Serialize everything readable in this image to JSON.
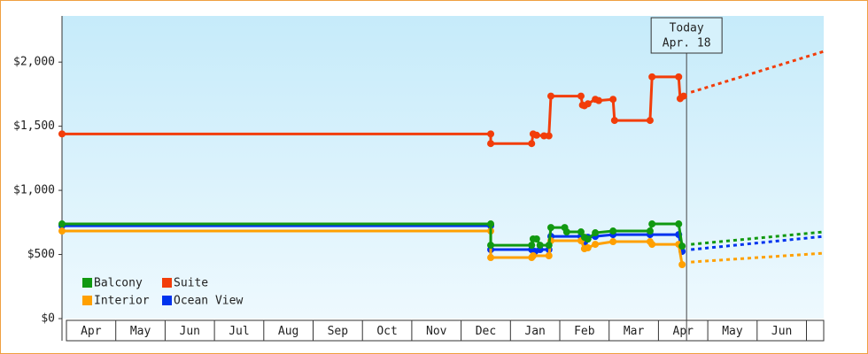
{
  "chart_data": {
    "type": "line",
    "step": true,
    "xlim": [
      -0.09,
      15.35
    ],
    "ylim": [
      0,
      2360
    ],
    "yticks": [
      {
        "value": 0,
        "label": "$0"
      },
      {
        "value": 500,
        "label": "$500"
      },
      {
        "value": 1000,
        "label": "$1,000"
      },
      {
        "value": 1500,
        "label": "$1,500"
      },
      {
        "value": 2000,
        "label": "$2,000"
      }
    ],
    "categories": [
      "Apr",
      "May",
      "Jun",
      "Jul",
      "Aug",
      "Sep",
      "Oct",
      "Nov",
      "Dec",
      "Jan",
      "Feb",
      "Mar",
      "Apr",
      "May",
      "Jun"
    ],
    "legend": "lower left",
    "annotation": {
      "x": 12.57,
      "lines": [
        "Today",
        "Apr. 18"
      ]
    },
    "series": [
      {
        "name": "Balcony",
        "color": "#119911",
        "x": [
          -0.09,
          8.6,
          8.6,
          9.43,
          9.46,
          9.53,
          9.6,
          9.78,
          9.82,
          10.1,
          10.14,
          10.43,
          10.5,
          10.57,
          10.72,
          11.08,
          11.83,
          11.87,
          12.41,
          12.48
        ],
        "values": [
          738,
          738,
          572,
          572,
          621,
          621,
          572,
          572,
          710,
          710,
          676,
          676,
          634,
          620,
          669,
          683,
          683,
          738,
          738,
          565
        ],
        "forecast": {
          "x": [
            12.66,
            15.35
          ],
          "values": [
            579,
            676
          ]
        }
      },
      {
        "name": "Suite",
        "color": "#f23d0a",
        "x": [
          -0.09,
          8.6,
          8.6,
          9.43,
          9.46,
          9.53,
          9.68,
          9.78,
          9.82,
          10.43,
          10.46,
          10.5,
          10.57,
          10.72,
          10.79,
          11.08,
          11.11,
          11.83,
          11.87,
          12.41,
          12.44,
          12.51
        ],
        "values": [
          1440,
          1440,
          1365,
          1365,
          1440,
          1430,
          1425,
          1425,
          1735,
          1735,
          1665,
          1660,
          1675,
          1710,
          1700,
          1710,
          1545,
          1545,
          1885,
          1885,
          1715,
          1735
        ],
        "forecast": {
          "x": [
            12.66,
            15.35
          ],
          "values": [
            1765,
            2083
          ]
        }
      },
      {
        "name": "Interior",
        "color": "#ffa000",
        "x": [
          -0.09,
          8.6,
          8.6,
          9.43,
          9.46,
          9.78,
          9.82,
          10.43,
          10.5,
          10.57,
          10.72,
          11.08,
          11.83,
          11.87,
          12.41,
          12.48
        ],
        "values": [
          683,
          683,
          476,
          476,
          490,
          490,
          607,
          607,
          545,
          552,
          579,
          600,
          600,
          579,
          579,
          421
        ],
        "forecast": {
          "x": [
            12.66,
            15.35
          ],
          "values": [
            441,
            510
          ]
        }
      },
      {
        "name": "Ocean View",
        "color": "#0033ee",
        "x": [
          -0.09,
          8.6,
          8.6,
          9.43,
          9.5,
          9.6,
          9.78,
          9.82,
          10.43,
          10.5,
          10.57,
          10.72,
          11.08,
          11.83,
          12.41,
          12.48
        ],
        "values": [
          724,
          724,
          538,
          538,
          524,
          538,
          538,
          641,
          641,
          593,
          634,
          641,
          655,
          655,
          655,
          524
        ],
        "forecast": {
          "x": [
            12.66,
            15.35
          ],
          "values": [
            538,
            641
          ]
        }
      }
    ]
  }
}
